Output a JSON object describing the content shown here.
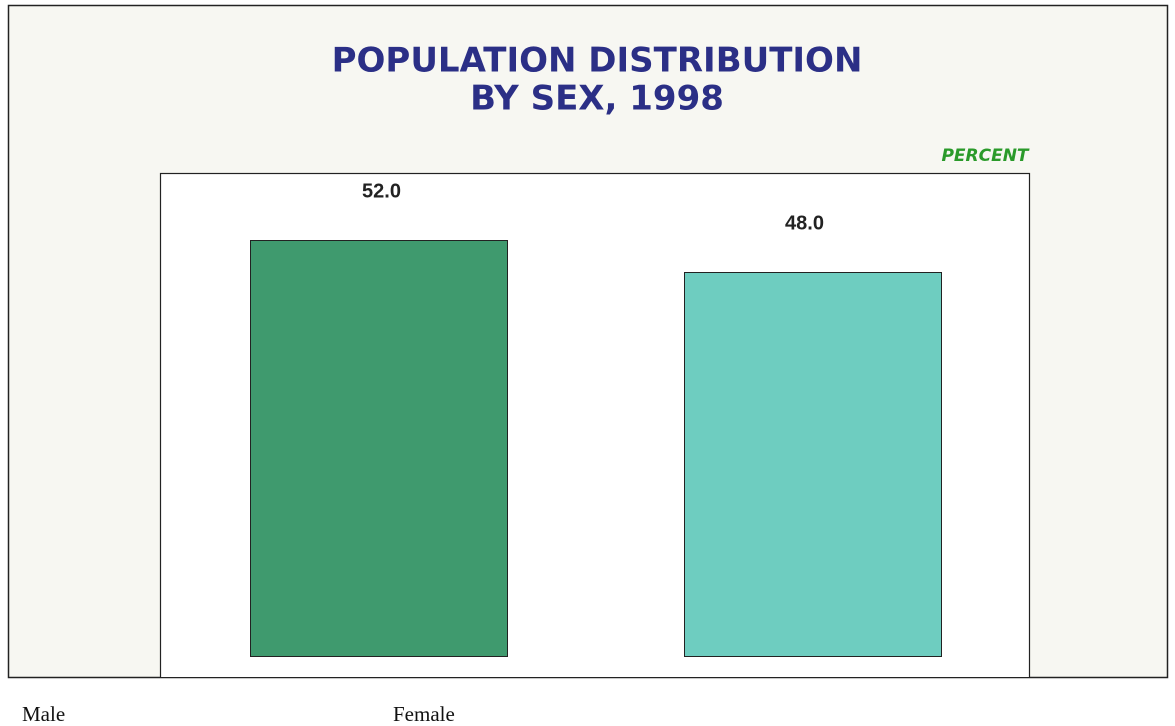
{
  "chart_data": {
    "type": "bar",
    "title": "POPULATION DISTRIBUTION",
    "subtitle": "BY SEX, 1998",
    "unit_label": "PERCENT",
    "categories": [
      "Male",
      "Female"
    ],
    "values": [
      52,
      48
    ],
    "value_labels": [
      "52.0",
      "48.0"
    ],
    "colors": [
      "#3f9a6e",
      "#6ecdc0"
    ],
    "ylim": [
      0,
      60
    ]
  }
}
